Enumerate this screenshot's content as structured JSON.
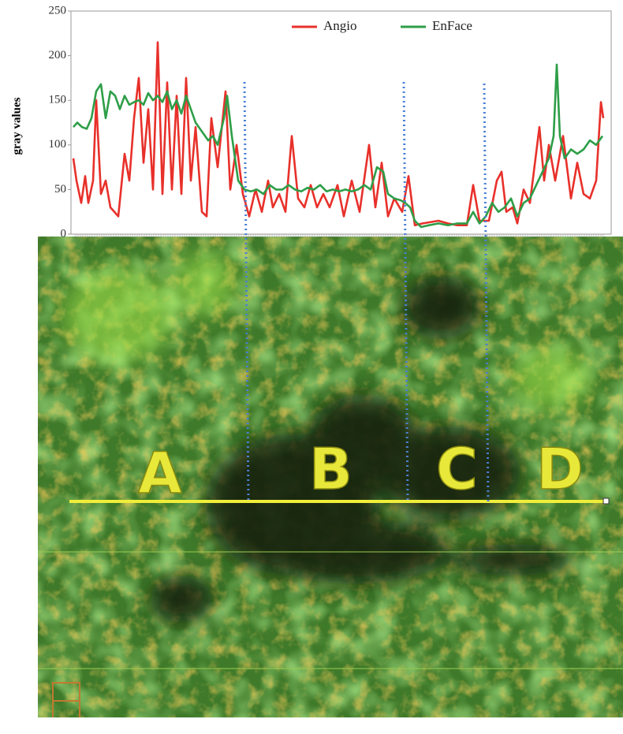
{
  "chart_data": {
    "type": "line",
    "ylabel": "gray values",
    "ylim": [
      0,
      250
    ],
    "yticks": [
      0,
      50,
      100,
      150,
      200,
      250
    ],
    "xlim": [
      0,
      672
    ],
    "legend": "top",
    "series": [
      {
        "name": "Angio",
        "color": "#e8302a",
        "x": [
          0,
          4,
          10,
          15,
          19,
          25,
          29,
          35,
          41,
          47,
          57,
          65,
          71,
          77,
          83,
          89,
          95,
          101,
          107,
          113,
          119,
          125,
          131,
          137,
          143,
          149,
          155,
          163,
          169,
          175,
          183,
          193,
          199,
          207,
          215,
          223,
          231,
          239,
          247,
          253,
          261,
          269,
          277,
          285,
          293,
          301,
          309,
          317,
          325,
          335,
          343,
          353,
          363,
          375,
          383,
          391,
          399,
          407,
          417,
          425,
          433,
          443,
          463,
          475,
          487,
          499,
          507,
          515,
          527,
          537,
          543,
          549,
          557,
          563,
          571,
          579,
          591,
          597,
          603,
          611,
          621,
          631,
          639,
          647,
          655,
          663,
          669,
          672
        ],
        "values": [
          85,
          60,
          35,
          65,
          35,
          60,
          150,
          45,
          60,
          30,
          20,
          90,
          60,
          130,
          175,
          80,
          140,
          50,
          215,
          45,
          170,
          50,
          155,
          45,
          175,
          60,
          120,
          25,
          20,
          130,
          75,
          160,
          50,
          100,
          45,
          20,
          50,
          25,
          60,
          30,
          45,
          25,
          110,
          40,
          30,
          55,
          30,
          45,
          30,
          55,
          20,
          60,
          25,
          100,
          30,
          80,
          20,
          40,
          25,
          65,
          10,
          12,
          15,
          12,
          10,
          10,
          55,
          15,
          15,
          60,
          70,
          25,
          30,
          12,
          50,
          35,
          120,
          60,
          100,
          60,
          110,
          40,
          80,
          45,
          40,
          60,
          148,
          130
        ]
      },
      {
        "name": "EnFace",
        "color": "#2e9e48",
        "x": [
          0,
          5,
          11,
          17,
          23,
          29,
          35,
          41,
          47,
          53,
          59,
          65,
          71,
          77,
          83,
          89,
          95,
          101,
          107,
          113,
          119,
          125,
          131,
          137,
          143,
          149,
          155,
          163,
          171,
          177,
          183,
          191,
          195,
          201,
          209,
          217,
          225,
          233,
          241,
          249,
          257,
          265,
          273,
          281,
          289,
          297,
          305,
          313,
          321,
          329,
          337,
          345,
          353,
          361,
          369,
          377,
          385,
          393,
          399,
          407,
          415,
          421,
          427,
          433,
          441,
          451,
          463,
          475,
          487,
          499,
          507,
          515,
          523,
          531,
          539,
          547,
          555,
          563,
          571,
          579,
          587,
          595,
          603,
          609,
          613,
          617,
          623,
          631,
          639,
          647,
          655,
          663,
          671
        ],
        "values": [
          120,
          125,
          120,
          118,
          130,
          160,
          168,
          130,
          160,
          155,
          140,
          155,
          145,
          148,
          150,
          145,
          158,
          150,
          155,
          148,
          160,
          140,
          150,
          135,
          155,
          140,
          125,
          115,
          105,
          110,
          100,
          130,
          155,
          110,
          60,
          50,
          48,
          50,
          45,
          55,
          50,
          50,
          55,
          50,
          48,
          52,
          50,
          55,
          48,
          50,
          48,
          50,
          48,
          50,
          55,
          50,
          75,
          70,
          45,
          40,
          38,
          35,
          30,
          15,
          8,
          10,
          12,
          10,
          12,
          12,
          25,
          12,
          20,
          35,
          25,
          30,
          40,
          20,
          35,
          40,
          55,
          70,
          85,
          110,
          190,
          110,
          85,
          95,
          90,
          95,
          105,
          100,
          110
        ]
      }
    ]
  },
  "image_labels": [
    "A",
    "B",
    "C",
    "D"
  ]
}
